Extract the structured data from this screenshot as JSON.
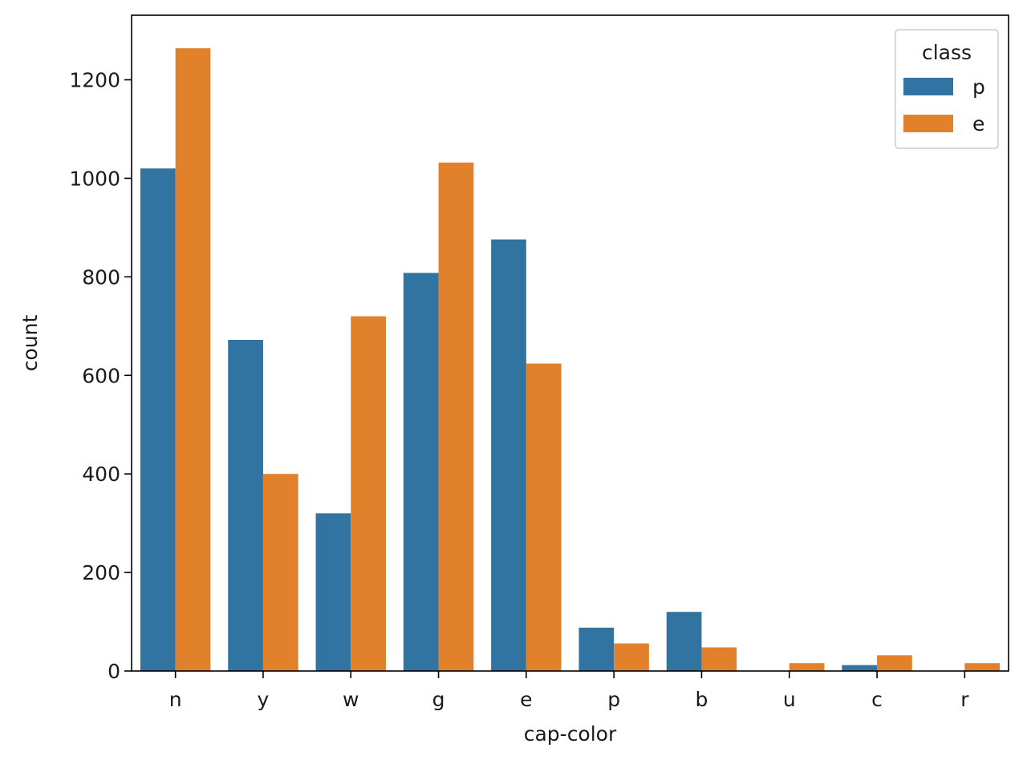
{
  "chart_data": {
    "type": "bar",
    "xlabel": "cap-color",
    "ylabel": "count",
    "categories": [
      "n",
      "y",
      "w",
      "g",
      "e",
      "p",
      "b",
      "u",
      "c",
      "r"
    ],
    "series": [
      {
        "name": "p",
        "color": "#3274a1",
        "values": [
          1020,
          672,
          320,
          808,
          876,
          88,
          120,
          0,
          12,
          0
        ]
      },
      {
        "name": "e",
        "color": "#e1812c",
        "values": [
          1264,
          400,
          720,
          1032,
          624,
          56,
          48,
          16,
          32,
          16
        ]
      }
    ],
    "ylim": [
      0,
      1331
    ],
    "yticks": [
      0,
      200,
      400,
      600,
      800,
      1000,
      1200
    ],
    "legend": {
      "title": "class",
      "position": "top-right"
    },
    "grid": false
  }
}
